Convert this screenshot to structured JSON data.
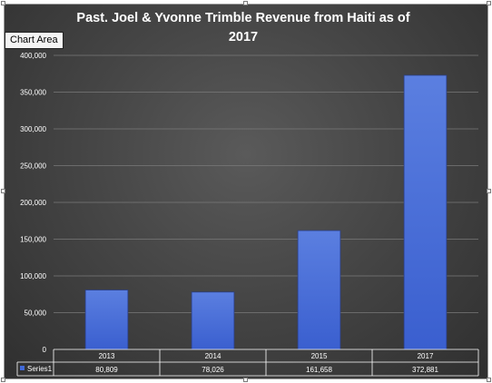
{
  "chart_area_tooltip": "Chart Area",
  "colors": {
    "bar": "#4169d8",
    "gridline": "#7a7a7a",
    "text": "#ffffff"
  },
  "chart_data": {
    "type": "bar",
    "title_line1": "Past. Joel & Yvonne Trimble Revenue from Haiti as of",
    "title_line2": "2017",
    "categories": [
      "2013",
      "2014",
      "2015",
      "2017"
    ],
    "series": [
      {
        "name": "Series1",
        "values": [
          80809,
          78026,
          161658,
          372881
        ]
      }
    ],
    "value_labels": [
      "80,809",
      "78,026",
      "161,658",
      "372,881"
    ],
    "y_ticks": [
      "0",
      "50,000",
      "100,000",
      "150,000",
      "200,000",
      "250,000",
      "300,000",
      "350,000",
      "400,000"
    ],
    "ylim": [
      0,
      400000
    ],
    "grid": true,
    "data_table": true,
    "legend_placement": "data-table"
  }
}
